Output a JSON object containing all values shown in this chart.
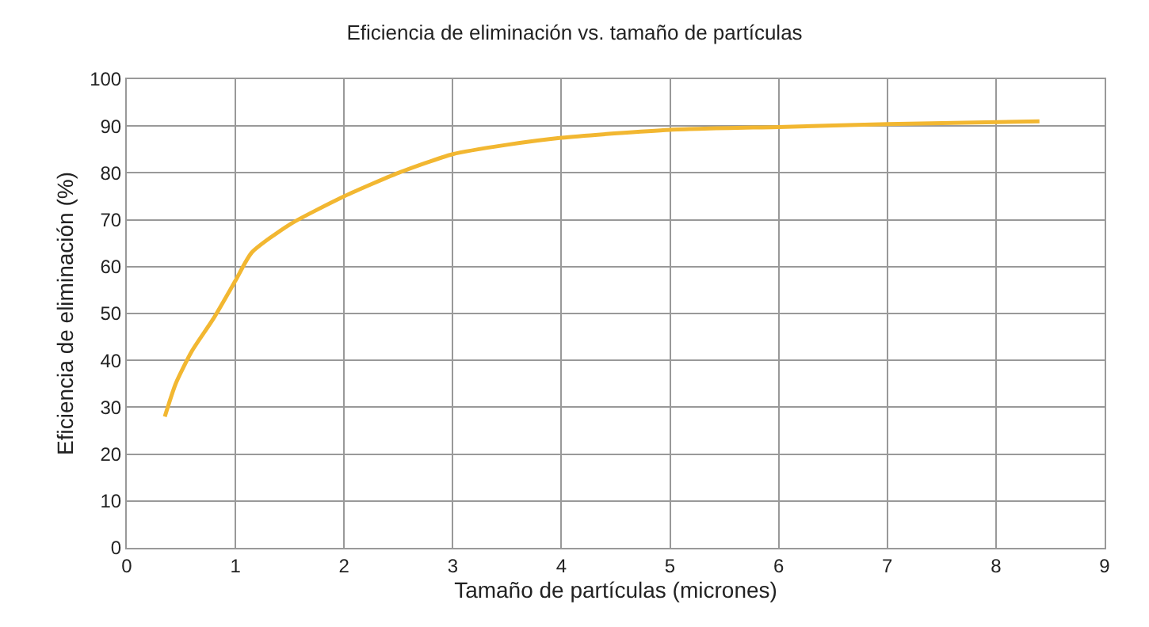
{
  "chart_data": {
    "type": "line",
    "title": "Eficiencia de eliminación vs. tamaño de partículas",
    "xlabel": "Tamaño de partículas (micrones)",
    "ylabel": "Eficiencia de eliminación (%)",
    "series": [
      {
        "color": "#f2b731",
        "x": [
          0.35,
          0.45,
          0.6,
          0.8,
          1.0,
          1.15,
          1.5,
          2.0,
          2.5,
          3.0,
          3.5,
          4.0,
          5.0,
          6.0,
          7.0,
          8.4
        ],
        "values": [
          28,
          35,
          42,
          49,
          57,
          63,
          69,
          75,
          80,
          84,
          86,
          87.5,
          89.2,
          89.8,
          90.4,
          91
        ]
      }
    ],
    "xlim": [
      0,
      9
    ],
    "xticks": [
      0,
      1,
      2,
      3,
      4,
      5,
      6,
      7,
      8,
      9
    ],
    "ylim": [
      0,
      100
    ],
    "yticks": [
      0,
      10,
      20,
      30,
      40,
      50,
      60,
      70,
      80,
      90,
      100
    ],
    "grid": true,
    "legend": false,
    "marker": "none",
    "line_style": "solid"
  }
}
